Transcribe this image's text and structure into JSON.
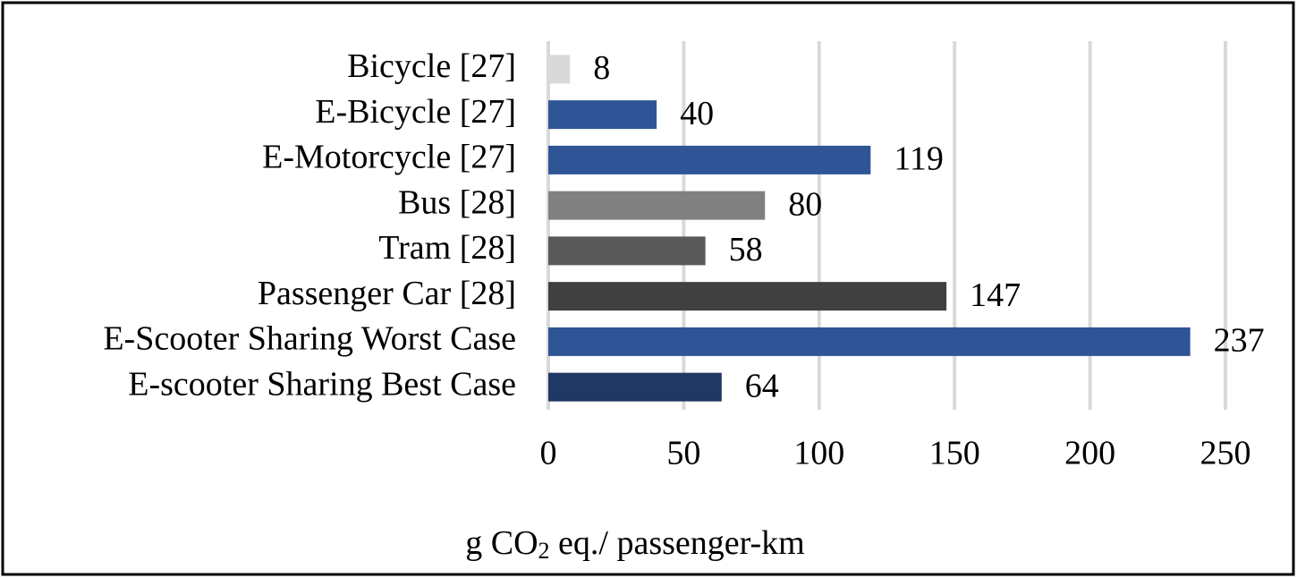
{
  "chart_data": {
    "type": "hbar",
    "categories": [
      "Bicycle [27]",
      "E-Bicycle [27]",
      "E-Motorcycle [27]",
      "Bus [28]",
      "Tram [28]",
      "Passenger Car [28]",
      "E-Scooter Sharing Worst Case",
      "E-scooter Sharing Best Case"
    ],
    "values": [
      8,
      40,
      119,
      80,
      58,
      147,
      237,
      64
    ],
    "colors": [
      "#d9d9d9",
      "#2f5597",
      "#2f5597",
      "#808080",
      "#595959",
      "#404040",
      "#2f5597",
      "#1f3864"
    ],
    "xlim": [
      0,
      250
    ],
    "xticks": [
      0,
      50,
      100,
      150,
      200,
      250
    ],
    "grid": true,
    "xlabel_parts": [
      "g CO",
      "2",
      " eq./ passenger-km"
    ]
  }
}
